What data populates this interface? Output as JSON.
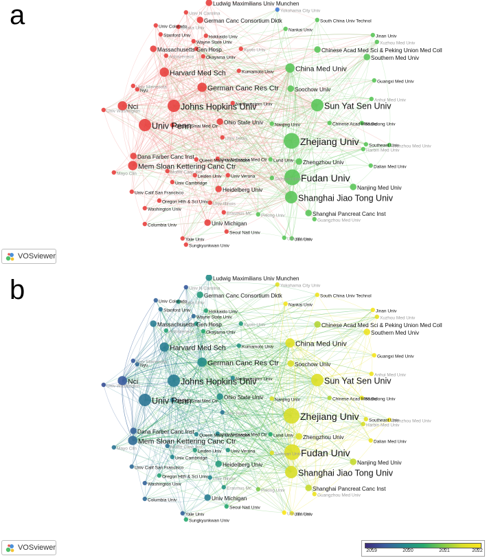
{
  "panels": [
    {
      "letter": "a",
      "mode": "cluster"
    },
    {
      "letter": "b",
      "mode": "overlay"
    }
  ],
  "badge": {
    "label": "VOSviewer"
  },
  "colors": {
    "cluster_red": "#e8413f",
    "cluster_green": "#5bc55a",
    "cluster_blue": "#3f7ad6",
    "edge_red": "#f08a86",
    "edge_green": "#7fd17a",
    "label_dark": "#111111",
    "label_faint": "#9a9a9a"
  },
  "legend": {
    "ticks": [
      "2019",
      "2020",
      "2021",
      "2022"
    ],
    "gradient": [
      "#3b2a7a",
      "#3a5b9d",
      "#26868f",
      "#27a86f",
      "#7cc84a",
      "#d8de2a",
      "#fbe61e"
    ]
  },
  "nodes": [
    {
      "label": "Ludwig Maximilians Univ Munchen",
      "cluster": "red",
      "year": 2020.1,
      "w": 2,
      "tone": "dark"
    },
    {
      "label": "Univ N Carolina",
      "cluster": "red",
      "year": 2019.5,
      "w": 1,
      "tone": "faint"
    },
    {
      "label": "Yokohama City Univ",
      "cluster": "blue",
      "year": 2021.6,
      "w": 1,
      "tone": "faint"
    },
    {
      "label": "Univ Colorado",
      "cluster": "red",
      "year": 2019.6,
      "w": 1,
      "tone": "dark"
    },
    {
      "label": "German Canc Consortium Dktk",
      "cluster": "red",
      "year": 2020.3,
      "w": 2,
      "tone": "dark"
    },
    {
      "label": "Osaka Univ",
      "cluster": "red",
      "year": 2020.2,
      "w": 1,
      "tone": "faint"
    },
    {
      "label": "South China Univ Technol",
      "cluster": "green",
      "year": 2021.8,
      "w": 1,
      "tone": "dark"
    },
    {
      "label": "Stanford Univ",
      "cluster": "red",
      "year": 2019.8,
      "w": 1,
      "tone": "dark"
    },
    {
      "label": "Hokkaido Univ",
      "cluster": "red",
      "year": 2020.4,
      "w": 1,
      "tone": "dark"
    },
    {
      "label": "Nankai Univ",
      "cluster": "green",
      "year": 2021.9,
      "w": 1,
      "tone": "dark"
    },
    {
      "label": "Jinan Univ",
      "cluster": "green",
      "year": 2021.9,
      "w": 1,
      "tone": "dark"
    },
    {
      "label": "Xuzhou Med Univ",
      "cluster": "green",
      "year": 2021.7,
      "w": 1,
      "tone": "faint"
    },
    {
      "label": "Wayne State Univ",
      "cluster": "red",
      "year": 2019.7,
      "w": 1,
      "tone": "dark"
    },
    {
      "label": "Massachusetts Gen Hosp",
      "cluster": "red",
      "year": 2019.9,
      "w": 2,
      "tone": "dark"
    },
    {
      "label": "Univ Turin",
      "cluster": "red",
      "year": 2020.2,
      "w": 1,
      "tone": "faint"
    },
    {
      "label": "Kyoto Univ",
      "cluster": "red",
      "year": 2020.3,
      "w": 1,
      "tone": "faint"
    },
    {
      "label": "Chinese Acad Med Sci & Peking Union Med Coll",
      "cluster": "green",
      "year": 2021.3,
      "w": 2,
      "tone": "dark"
    },
    {
      "label": "Astrazeneca",
      "cluster": "red",
      "year": 2020.4,
      "w": 1,
      "tone": "faint"
    },
    {
      "label": "Okayama Univ",
      "cluster": "red",
      "year": 2020.5,
      "w": 1,
      "tone": "dark"
    },
    {
      "label": "Southern Med Univ",
      "cluster": "green",
      "year": 2021.8,
      "w": 2,
      "tone": "dark"
    },
    {
      "label": "Harvard Med Sch",
      "cluster": "red",
      "year": 2019.9,
      "w": 3,
      "tone": "dark"
    },
    {
      "label": "China Med Univ",
      "cluster": "green",
      "year": 2021.6,
      "w": 3,
      "tone": "dark"
    },
    {
      "label": "Kumamoto Univ",
      "cluster": "red",
      "year": 2020.2,
      "w": 1,
      "tone": "dark"
    },
    {
      "label": "Guangxi Med Univ",
      "cluster": "green",
      "year": 2021.9,
      "w": 1,
      "tone": "dark"
    },
    {
      "label": "Univ Minnesota",
      "cluster": "red",
      "year": 2019.5,
      "w": 1,
      "tone": "faint"
    },
    {
      "label": "Nyu",
      "cluster": "red",
      "year": 2019.7,
      "w": 1,
      "tone": "dark"
    },
    {
      "label": "German Canc Res Ctr",
      "cluster": "red",
      "year": 2020.1,
      "w": 3,
      "tone": "dark"
    },
    {
      "label": "Soochow Univ",
      "cluster": "green",
      "year": 2021.5,
      "w": 2,
      "tone": "dark"
    },
    {
      "label": "Anhui Med Univ",
      "cluster": "green",
      "year": 2021.8,
      "w": 1,
      "tone": "faint"
    },
    {
      "label": "Univ Washington",
      "cluster": "red",
      "year": 2019.4,
      "w": 1,
      "tone": "faint"
    },
    {
      "label": "Nci",
      "cluster": "red",
      "year": 2019.5,
      "w": 3,
      "tone": "dark"
    },
    {
      "label": "Johns Hopkins Univ",
      "cluster": "red",
      "year": 2019.9,
      "w": 4,
      "tone": "dark"
    },
    {
      "label": "Northwestern Univ",
      "cluster": "red",
      "year": 2020.0,
      "w": 1,
      "tone": "dark"
    },
    {
      "label": "Sun Yat Sen Univ",
      "cluster": "green",
      "year": 2021.6,
      "w": 4,
      "tone": "dark"
    },
    {
      "label": "Nanjing Univ",
      "cluster": "green",
      "year": 2021.5,
      "w": 1,
      "tone": "dark"
    },
    {
      "label": "Chinese Acad Med Sci",
      "cluster": "green",
      "year": 2021.3,
      "w": 1,
      "tone": "dark"
    },
    {
      "label": "Shandong Univ",
      "cluster": "green",
      "year": 2021.7,
      "w": 1,
      "tone": "dark"
    },
    {
      "label": "Univ Penn",
      "cluster": "red",
      "year": 2019.8,
      "w": 4,
      "tone": "dark"
    },
    {
      "label": "Cedars Sinai Med Ctr",
      "cluster": "red",
      "year": 2019.9,
      "w": 1,
      "tone": "dark"
    },
    {
      "label": "Ohio State Univ",
      "cluster": "red",
      "year": 2020.1,
      "w": 2,
      "tone": "dark"
    },
    {
      "label": "Univ Texas",
      "cluster": "red",
      "year": 2019.8,
      "w": 1,
      "tone": "faint"
    },
    {
      "label": "Zhejiang Univ",
      "cluster": "green",
      "year": 2021.5,
      "w": 5,
      "tone": "dark"
    },
    {
      "label": "Southeast Univ",
      "cluster": "green",
      "year": 2021.7,
      "w": 1,
      "tone": "dark"
    },
    {
      "label": "Harbin Med Univ",
      "cluster": "green",
      "year": 2021.5,
      "w": 1,
      "tone": "faint"
    },
    {
      "label": "Wenzhou Med Univ",
      "cluster": "green",
      "year": 2021.9,
      "w": 1,
      "tone": "faint"
    },
    {
      "label": "Dana Farber Canc Inst",
      "cluster": "red",
      "year": 2019.6,
      "w": 2,
      "tone": "dark"
    },
    {
      "label": "Queen Mary Univ London",
      "cluster": "red",
      "year": 2020.0,
      "w": 1,
      "tone": "dark"
    },
    {
      "label": "Mayo Clin",
      "cluster": "red",
      "year": 2019.8,
      "w": 1,
      "tone": "faint"
    },
    {
      "label": "Moffitt Canc Inst",
      "cluster": "red",
      "year": 2019.8,
      "w": 1,
      "tone": "faint"
    },
    {
      "label": "Mem Sloan Kettering Canc Ctr",
      "cluster": "red",
      "year": 2019.7,
      "w": 3,
      "tone": "dark"
    },
    {
      "label": "Univ Nebraska Med Ctr",
      "cluster": "red",
      "year": 2020.0,
      "w": 1,
      "tone": "dark"
    },
    {
      "label": "Zhengzhou Univ",
      "cluster": "green",
      "year": 2021.6,
      "w": 2,
      "tone": "dark"
    },
    {
      "label": "Dalian Med Univ",
      "cluster": "green",
      "year": 2021.8,
      "w": 1,
      "tone": "dark"
    },
    {
      "label": "Lund Univ",
      "cluster": "green",
      "year": 2020.5,
      "w": 1,
      "tone": "dark"
    },
    {
      "label": "Sichuan Univ",
      "cluster": "green",
      "year": 2021.6,
      "w": 1,
      "tone": "faint"
    },
    {
      "label": "Univ Cambridge",
      "cluster": "red",
      "year": 2020.0,
      "w": 1,
      "tone": "dark"
    },
    {
      "label": "Leiden Univ",
      "cluster": "red",
      "year": 2020.3,
      "w": 1,
      "tone": "dark"
    },
    {
      "label": "Univ Verona",
      "cluster": "red",
      "year": 2020.2,
      "w": 1,
      "tone": "dark"
    },
    {
      "label": "Fudan Univ",
      "cluster": "green",
      "year": 2021.6,
      "w": 5,
      "tone": "dark"
    },
    {
      "label": "Nanjing Med Univ",
      "cluster": "green",
      "year": 2021.4,
      "w": 2,
      "tone": "dark"
    },
    {
      "label": "Univ Calif San Francisco",
      "cluster": "red",
      "year": 2019.7,
      "w": 1,
      "tone": "dark"
    },
    {
      "label": "Heidelberg Univ",
      "cluster": "red",
      "year": 2020.3,
      "w": 2,
      "tone": "dark"
    },
    {
      "label": "Shanghai Jiao Tong Univ",
      "cluster": "green",
      "year": 2021.5,
      "w": 4,
      "tone": "dark"
    },
    {
      "label": "Oregon Hlth & Sci Univ",
      "cluster": "red",
      "year": 2020.4,
      "w": 1,
      "tone": "dark"
    },
    {
      "label": "Univ Illinois",
      "cluster": "red",
      "year": 2020.0,
      "w": 1,
      "tone": "faint"
    },
    {
      "label": "Washington Univ",
      "cluster": "red",
      "year": 2019.6,
      "w": 1,
      "tone": "dark"
    },
    {
      "label": "Erasmus Mc",
      "cluster": "red",
      "year": 2020.2,
      "w": 1,
      "tone": "faint"
    },
    {
      "label": "Peking Univ",
      "cluster": "green",
      "year": 2021.0,
      "w": 1,
      "tone": "faint"
    },
    {
      "label": "Shanghai Pancreat Canc Inst",
      "cluster": "green",
      "year": 2021.4,
      "w": 2,
      "tone": "dark"
    },
    {
      "label": "Guangzhou Med Univ",
      "cluster": "green",
      "year": 2021.8,
      "w": 1,
      "tone": "faint"
    },
    {
      "label": "Columbia Univ",
      "cluster": "red",
      "year": 2019.7,
      "w": 1,
      "tone": "dark"
    },
    {
      "label": "Univ Michigan",
      "cluster": "red",
      "year": 2019.9,
      "w": 2,
      "tone": "dark"
    },
    {
      "label": "Seoul Natl Univ",
      "cluster": "red",
      "year": 2020.5,
      "w": 1,
      "tone": "dark"
    },
    {
      "label": "Univ Wuhan",
      "cluster": "green",
      "year": 2022.0,
      "w": 1,
      "tone": "faint"
    },
    {
      "label": "Jilin Univ",
      "cluster": "green",
      "year": 2021.8,
      "w": 1,
      "tone": "dark"
    },
    {
      "label": "Yale Univ",
      "cluster": "red",
      "year": 2019.6,
      "w": 1,
      "tone": "dark"
    },
    {
      "label": "Sungkyunkwan Univ",
      "cluster": "red",
      "year": 2020.5,
      "w": 1,
      "tone": "dark"
    }
  ]
}
